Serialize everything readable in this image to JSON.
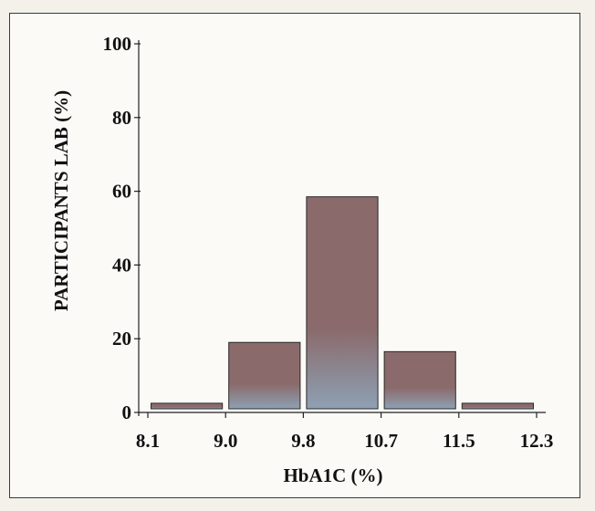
{
  "chart_data": {
    "type": "bar",
    "categories": [
      "8.1–9.0",
      "9.0–9.8",
      "9.8–10.7",
      "10.7–11.5",
      "11.5–12.3"
    ],
    "bin_edges": [
      "8.1",
      "9.0",
      "9.8",
      "10.7",
      "11.5",
      "12.3"
    ],
    "values": [
      2.5,
      19,
      58.5,
      16.5,
      2.5
    ],
    "xlabel": "HbA1C (%)",
    "ylabel": "PARTICIPANTS LAB (%)",
    "ylim": [
      0,
      100
    ],
    "yticks": [
      "0",
      "20",
      "40",
      "60",
      "80",
      "100"
    ],
    "grid": false,
    "colors": {
      "bar_top": "#8a6a6a",
      "bar_bottom": "#8ea0b4",
      "bar_edge": "#2a2a2a"
    }
  }
}
